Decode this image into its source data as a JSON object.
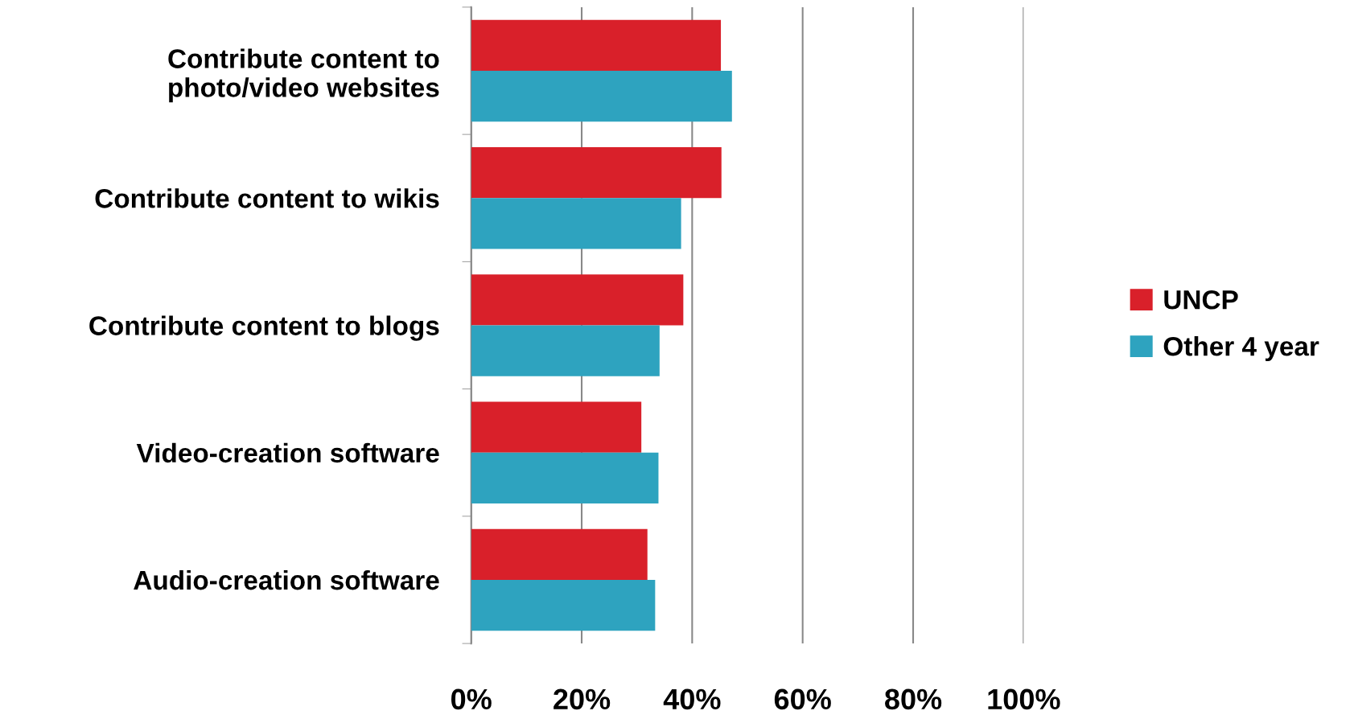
{
  "chart_data": {
    "type": "bar",
    "orientation": "horizontal",
    "categories": [
      "Contribute content to\nphoto/video websites",
      "Contribute content to wikis",
      "Contribute content to blogs",
      "Video-creation software",
      "Audio-creation software"
    ],
    "series": [
      {
        "name": "UNCP",
        "color": "#d9202a",
        "values": [
          45.2,
          45.3,
          38.4,
          30.8,
          31.9
        ]
      },
      {
        "name": "Other 4 year",
        "color": "#2ea3bf",
        "values": [
          47.2,
          38.0,
          34.1,
          33.9,
          33.3
        ]
      }
    ],
    "xlim": [
      0,
      100
    ],
    "xticks": [
      {
        "value": 0,
        "label": "0%"
      },
      {
        "value": 20,
        "label": "20%"
      },
      {
        "value": 40,
        "label": "40%"
      },
      {
        "value": 60,
        "label": "60%"
      },
      {
        "value": 80,
        "label": "80%"
      },
      {
        "value": 100,
        "label": "100%"
      }
    ],
    "grid": "x",
    "legend": "right"
  }
}
